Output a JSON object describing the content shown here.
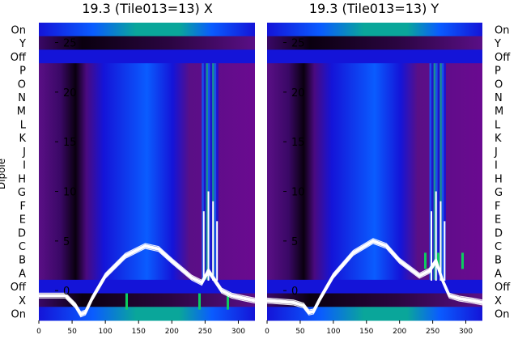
{
  "ylabel": "Dipole",
  "dipole_rows": [
    "On",
    "Y",
    "Off",
    "P",
    "O",
    "N",
    "M",
    "L",
    "K",
    "J",
    "I",
    "H",
    "G",
    "F",
    "E",
    "D",
    "C",
    "B",
    "A",
    "Off",
    "X",
    "On"
  ],
  "colors": {
    "black": "#0a000f",
    "purple": "#5a0f86",
    "violet": "#7a0a9c",
    "blue": "#1414d8",
    "bright_blue": "#0a5cff",
    "teal": "#0aa69a",
    "green": "#0ccc60",
    "trace": "#ffffff"
  },
  "chart_data": [
    {
      "type": "heatmap",
      "title": "19.3 (Tile013=13) X",
      "x_ticks": [
        0,
        50,
        100,
        150,
        200,
        250,
        300
      ],
      "xlim": [
        0,
        325
      ],
      "overlay_y_ticks": [
        0,
        5,
        10,
        15,
        20,
        25
      ],
      "overlay_ylim": [
        -3,
        27
      ],
      "series": [
        {
          "name": "",
          "x": [
            0,
            40,
            55,
            63,
            70,
            80,
            100,
            130,
            160,
            180,
            200,
            230,
            245,
            255,
            265,
            275,
            290,
            310,
            325
          ],
          "y": [
            -0.5,
            -0.5,
            -1.5,
            -2.4,
            -2.2,
            -0.8,
            1.5,
            3.5,
            4.5,
            4.2,
            3.0,
            1.3,
            0.8,
            2.0,
            1.0,
            0.0,
            -0.5,
            -0.8,
            -1.0
          ]
        }
      ]
    },
    {
      "type": "heatmap",
      "title": "19.3 (Tile013=13) Y",
      "x_ticks": [
        0,
        50,
        100,
        150,
        200,
        250,
        300
      ],
      "xlim": [
        0,
        325
      ],
      "overlay_y_ticks": [
        0,
        5,
        10,
        15,
        20,
        25
      ],
      "overlay_ylim": [
        -3,
        27
      ],
      "series": [
        {
          "name": "",
          "x": [
            0,
            40,
            55,
            63,
            70,
            80,
            100,
            130,
            160,
            180,
            200,
            230,
            245,
            255,
            265,
            275,
            290,
            310,
            325
          ],
          "y": [
            -1.0,
            -1.2,
            -1.5,
            -2.2,
            -2.1,
            -0.8,
            1.5,
            3.8,
            5.0,
            4.5,
            3.0,
            1.5,
            2.0,
            3.0,
            1.0,
            -0.5,
            -0.8,
            -1.0,
            -1.2
          ]
        }
      ]
    }
  ]
}
